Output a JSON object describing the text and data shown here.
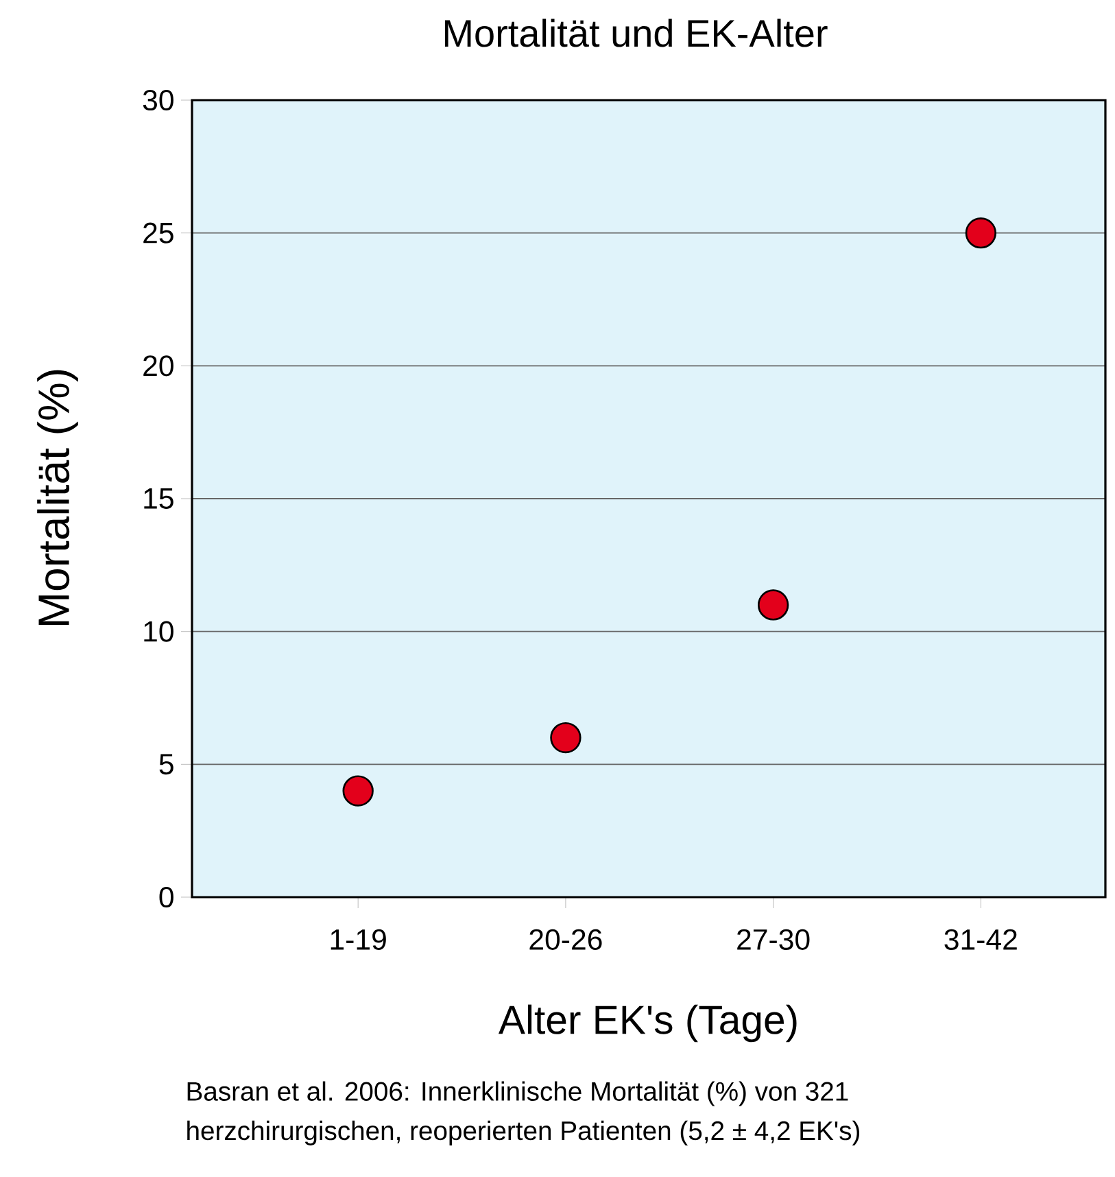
{
  "chart_data": {
    "type": "scatter",
    "title": "Mortalität und EK-Alter",
    "xlabel": "Alter EK's (Tage)",
    "ylabel": "Mortalität (%)",
    "categories": [
      "1-19",
      "20-26",
      "27-30",
      "31-42"
    ],
    "series": [
      {
        "color": "#e3001b",
        "values": [
          4,
          6,
          11,
          25
        ]
      }
    ],
    "ylim": [
      0,
      30
    ],
    "yticks": [
      0,
      5,
      10,
      15,
      20,
      25,
      30
    ],
    "grid": "y",
    "annotations": [
      "Basran et al. 2006: Innerklinische Mortalität (%) von 321 herzchirurgischen, reoperierten Patienten (5,2 ± 4,2 EK's)"
    ]
  }
}
